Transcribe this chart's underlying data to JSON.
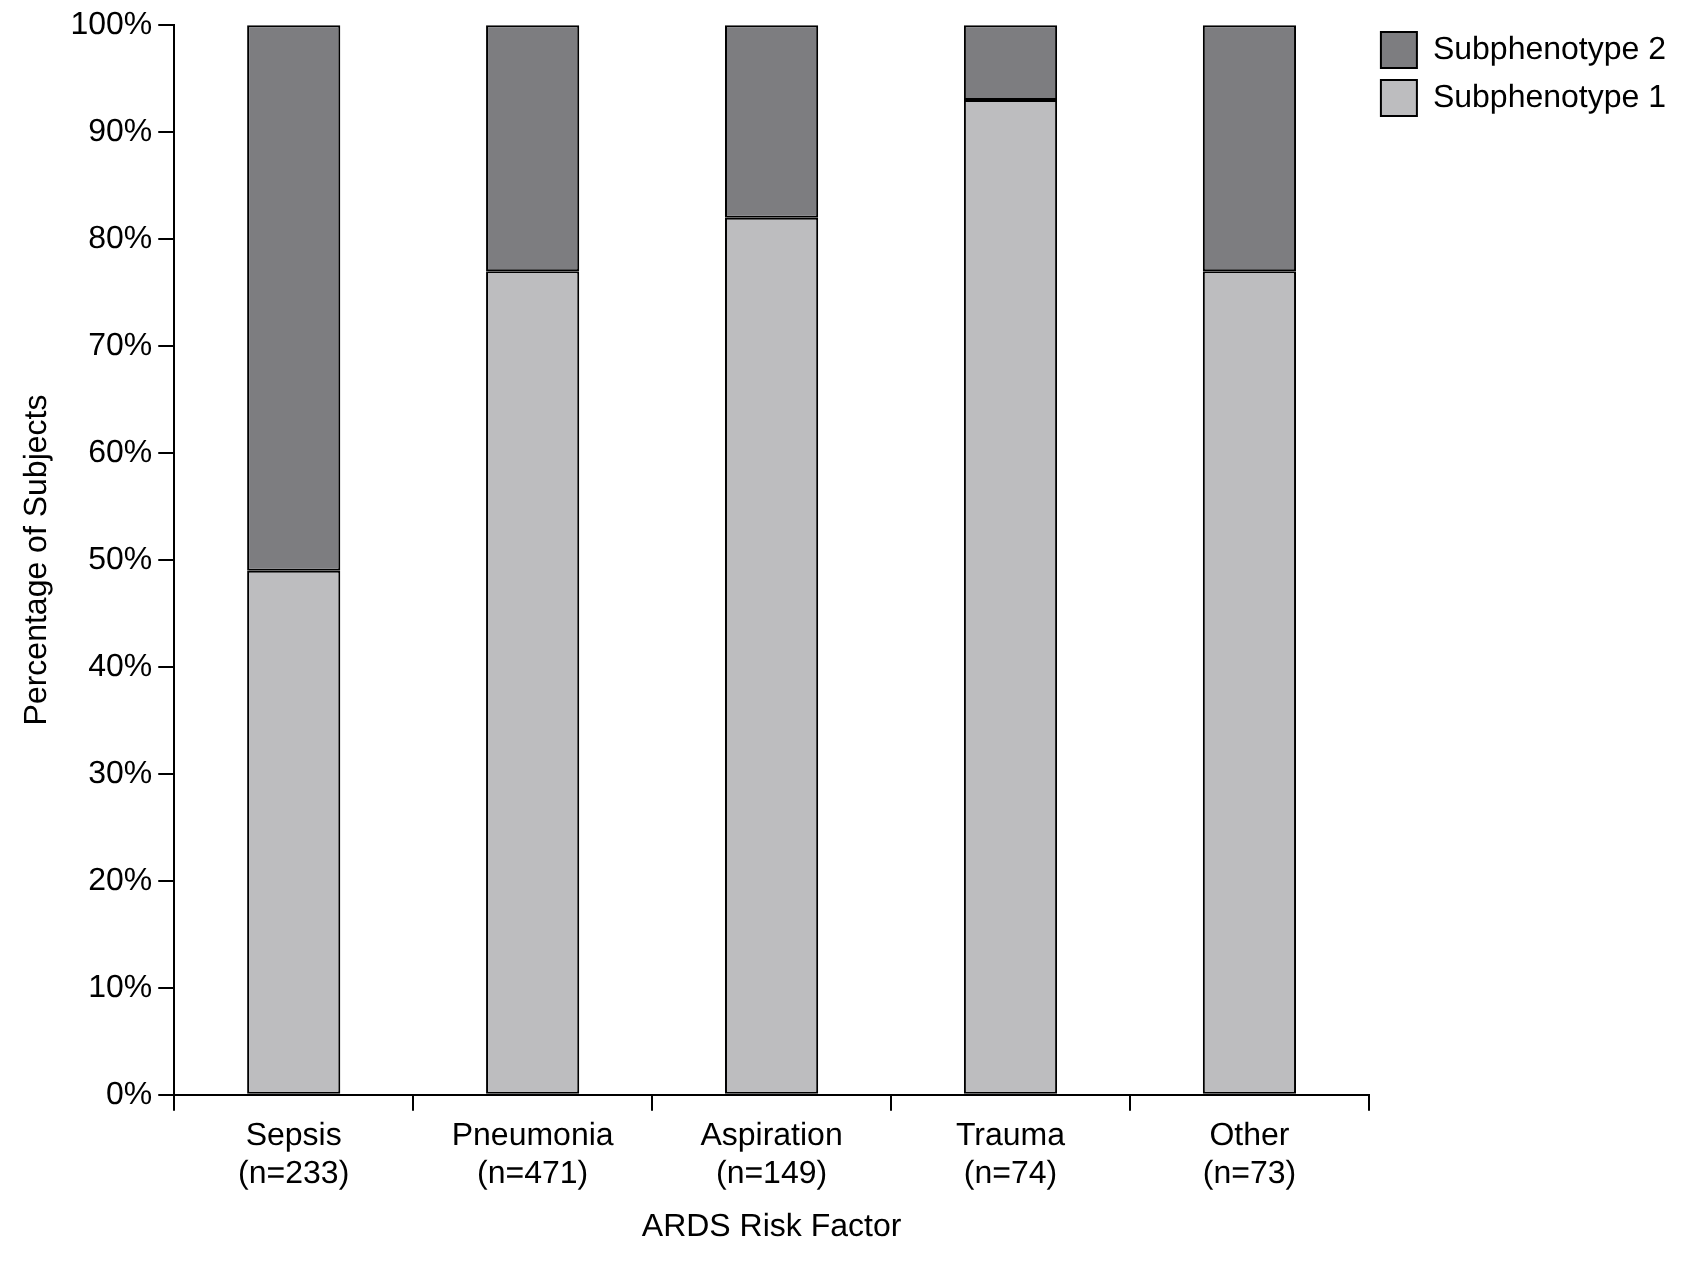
{
  "chart_data": {
    "type": "bar",
    "stacked": true,
    "xlabel": "ARDS Risk Factor",
    "ylabel": "Percentage of Subjects",
    "categories": [
      "Sepsis\n(n=233)",
      "Pneumonia\n(n=471)",
      "Aspiration\n(n=149)",
      "Trauma\n(n=74)",
      "Other\n(n=73)"
    ],
    "series": [
      {
        "name": "Subphenotype 1",
        "color": "#bdbdbf",
        "values": [
          49,
          77,
          82,
          93,
          77
        ]
      },
      {
        "name": "Subphenotype 2",
        "color": "#7d7d80",
        "values": [
          51,
          23,
          18,
          7,
          23
        ]
      }
    ],
    "ylim": [
      0,
      100
    ],
    "yticks": [
      {
        "value": 0,
        "label": "0%"
      },
      {
        "value": 10,
        "label": "10%"
      },
      {
        "value": 20,
        "label": "20%"
      },
      {
        "value": 30,
        "label": "30%"
      },
      {
        "value": 40,
        "label": "40%"
      },
      {
        "value": 50,
        "label": "50%"
      },
      {
        "value": 60,
        "label": "60%"
      },
      {
        "value": 70,
        "label": "70%"
      },
      {
        "value": 80,
        "label": "80%"
      },
      {
        "value": 90,
        "label": "90%"
      },
      {
        "value": 100,
        "label": "100%"
      }
    ],
    "grid": false,
    "legend": "top right"
  }
}
